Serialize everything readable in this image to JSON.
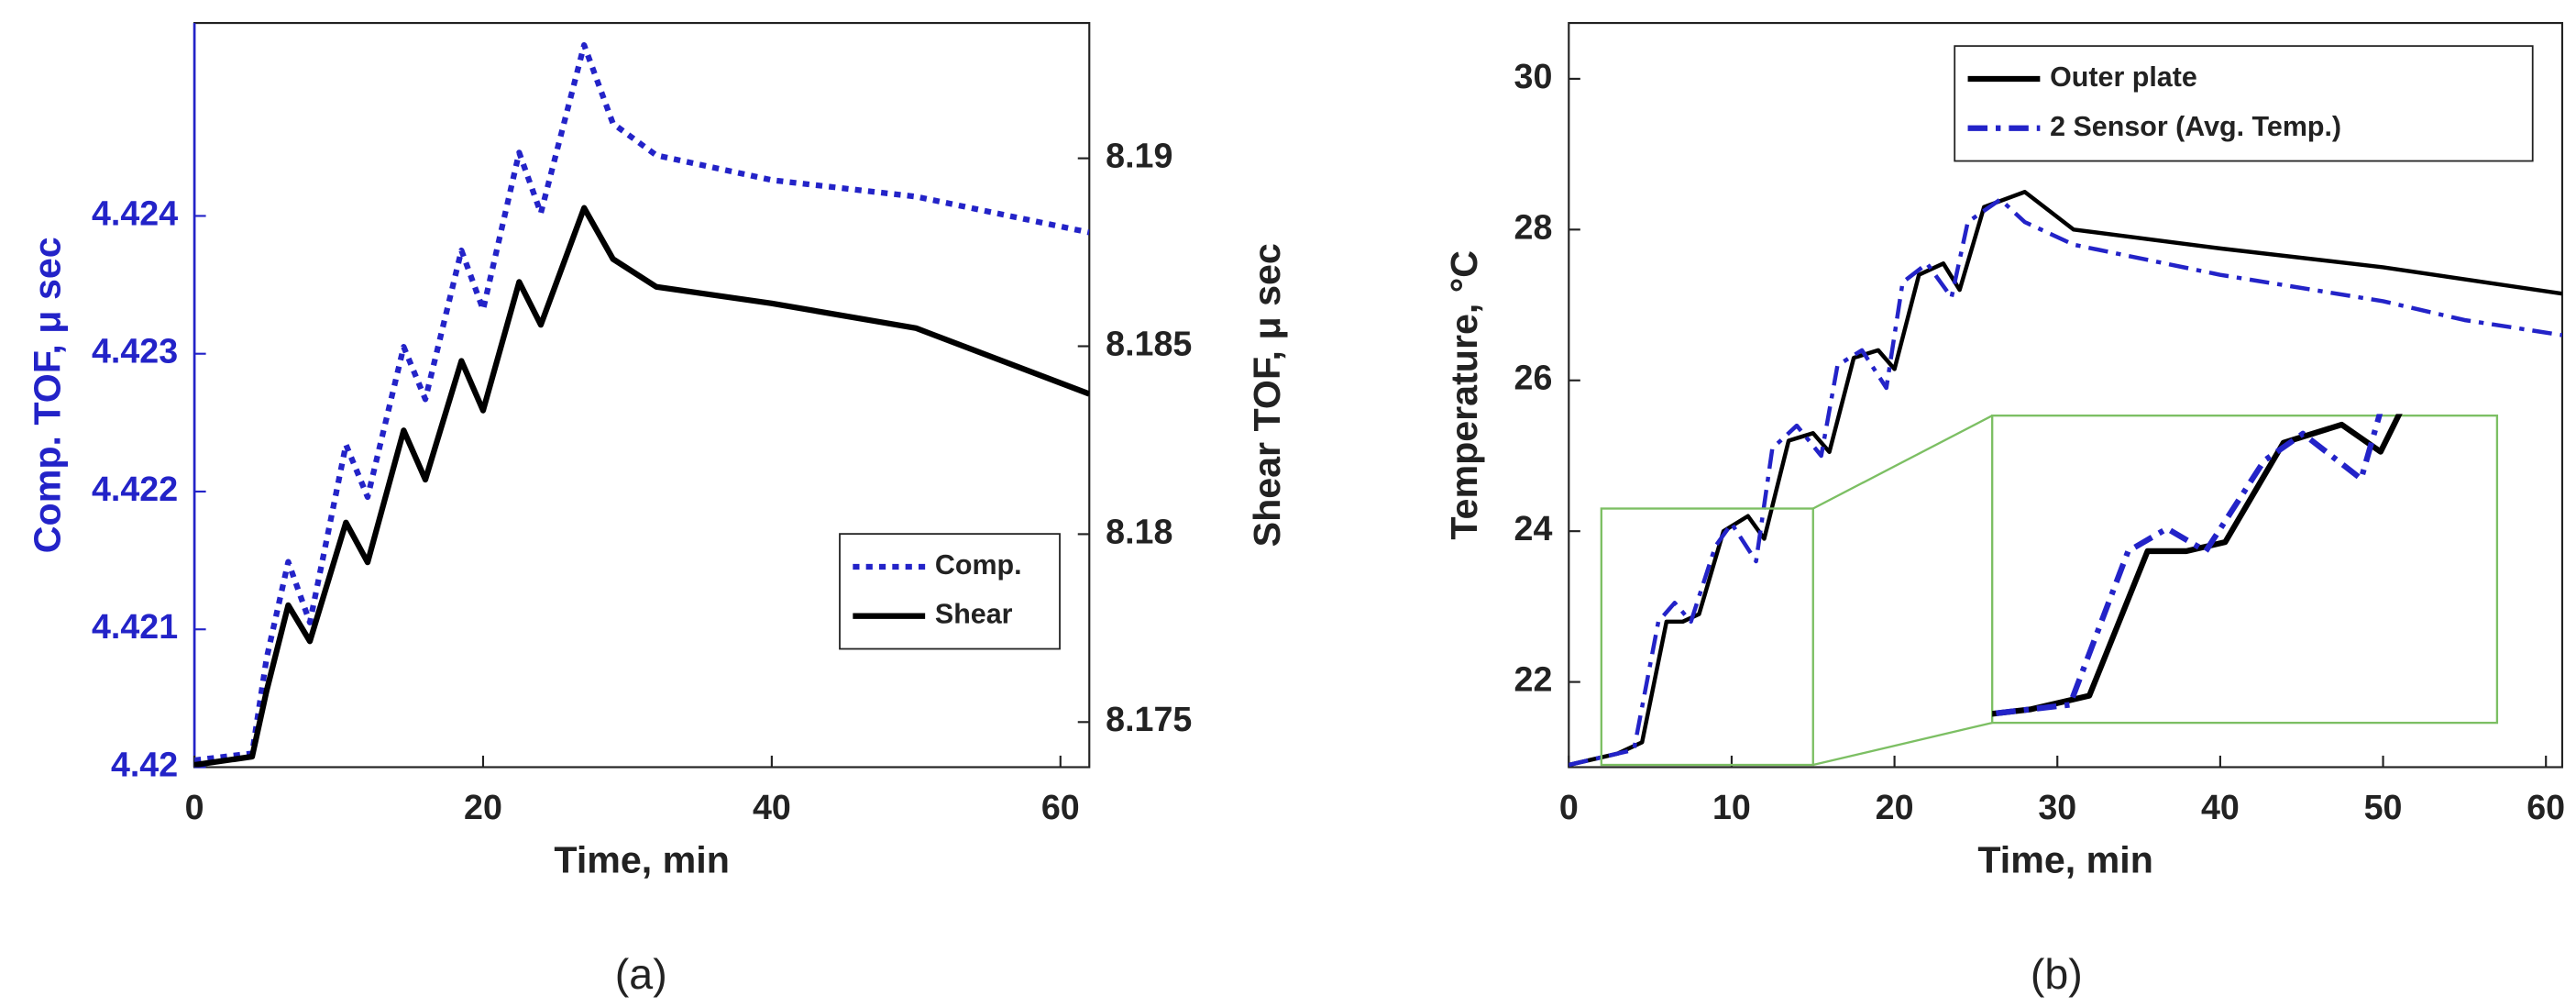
{
  "chart_data": [
    {
      "type": "line",
      "caption": "(a)",
      "xlabel": "Time, min",
      "ylabel": "Comp. TOF, μ sec",
      "y2label": "Shear TOF, μ sec",
      "ycolor": "#2323c8",
      "legend": "lower right",
      "xlim": [
        0,
        62
      ],
      "xticks": [
        0,
        20,
        40,
        60
      ],
      "ylim": [
        4.42,
        4.4254
      ],
      "yticks": [
        4.42,
        4.421,
        4.422,
        4.423,
        4.424
      ],
      "y2lim": [
        8.1738,
        8.1936
      ],
      "y2ticks": [
        8.175,
        8.18,
        8.185,
        8.19
      ],
      "series": [
        {
          "name": "Comp.",
          "color": "#2323c8",
          "linestyle": "dotted",
          "x": [
            0,
            4,
            5,
            6.5,
            8,
            10.5,
            12,
            14.5,
            16,
            18.5,
            20,
            22.5,
            24,
            27,
            29,
            32,
            40,
            50,
            62
          ],
          "values": [
            4.42005,
            4.4201,
            4.42079,
            4.42149,
            4.42105,
            4.42234,
            4.42196,
            4.42305,
            4.42267,
            4.42375,
            4.42332,
            4.42446,
            4.42402,
            4.42524,
            4.42467,
            4.42444,
            4.42426,
            4.42414,
            4.42388
          ]
        },
        {
          "name": "Shear",
          "color": "#000000",
          "linestyle": "solid",
          "axis": "y2",
          "x": [
            0,
            4,
            5,
            6.5,
            8,
            10.5,
            12,
            14.5,
            16,
            18.5,
            20,
            22.5,
            24,
            27,
            29,
            32,
            40,
            50,
            62
          ],
          "values": [
            8.17386,
            8.17408,
            8.17583,
            8.17811,
            8.17715,
            8.18031,
            8.17925,
            8.18276,
            8.18145,
            8.18461,
            8.18329,
            8.18671,
            8.18557,
            8.18868,
            8.18732,
            8.18658,
            8.18614,
            8.18548,
            8.18373
          ]
        }
      ]
    },
    {
      "type": "line",
      "caption": "(b)",
      "xlabel": "Time, min",
      "ylabel": "Temperature, °C",
      "legend": "upper right",
      "inset": true,
      "xlim": [
        0,
        61
      ],
      "xticks": [
        0,
        10,
        20,
        30,
        40,
        50,
        60
      ],
      "ylim": [
        20.87,
        30.74
      ],
      "yticks": [
        22,
        24,
        26,
        28,
        30
      ],
      "series": [
        {
          "name": "Outer plate",
          "color": "#000000",
          "linestyle": "solid",
          "x": [
            0,
            3,
            4.5,
            6,
            7,
            8,
            9.5,
            11,
            12,
            13.5,
            15,
            16,
            17.5,
            19,
            20,
            21.5,
            23,
            24,
            25.5,
            28,
            31,
            40,
            50,
            61
          ],
          "values": [
            20.9,
            21.05,
            21.2,
            22.8,
            22.8,
            22.9,
            24.0,
            24.2,
            23.9,
            25.2,
            25.3,
            25.05,
            26.3,
            26.4,
            26.15,
            27.4,
            27.55,
            27.2,
            28.3,
            28.5,
            28.0,
            27.75,
            27.5,
            27.15
          ]
        },
        {
          "name": "2 Sensor (Avg. Temp.)",
          "color": "#2323c8",
          "linestyle": "dashdot",
          "x": [
            0,
            2,
            4,
            5.5,
            6.5,
            7.5,
            9,
            10,
            11.5,
            12.5,
            14,
            15.5,
            16.5,
            18,
            19.5,
            20.5,
            22,
            23.5,
            24.5,
            26.5,
            28,
            31,
            40,
            50,
            55,
            61
          ],
          "values": [
            20.9,
            21.0,
            21.1,
            22.8,
            23.05,
            22.8,
            23.8,
            24.1,
            23.6,
            25.1,
            25.4,
            25.0,
            26.2,
            26.4,
            25.9,
            27.3,
            27.55,
            27.1,
            28.1,
            28.4,
            28.1,
            27.8,
            27.4,
            27.05,
            26.8,
            26.6
          ]
        }
      ]
    }
  ]
}
